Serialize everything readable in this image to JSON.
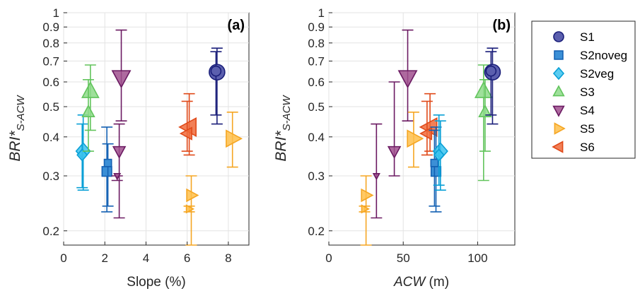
{
  "series_styles": {
    "S1": {
      "marker": "circle",
      "fill": "#5b5fae",
      "stroke": "#1b1f7a"
    },
    "S2noveg": {
      "marker": "square",
      "fill": "#3b8fd6",
      "stroke": "#1461b3"
    },
    "S2veg": {
      "marker": "diamond",
      "fill": "#3dc3ef",
      "stroke": "#0aa0d6"
    },
    "S3": {
      "marker": "triangle-up",
      "fill": "#8edb8a",
      "stroke": "#62c45c"
    },
    "S4": {
      "marker": "triangle-down",
      "fill": "#a0508e",
      "stroke": "#6b1a62"
    },
    "S5": {
      "marker": "triangle-right",
      "fill": "#ffc04a",
      "stroke": "#f5a623"
    },
    "S6": {
      "marker": "triangle-left",
      "fill": "#f06a3a",
      "stroke": "#e04a1a"
    }
  },
  "legend": {
    "position": "outside-right",
    "entries": [
      "S1",
      "S2noveg",
      "S2veg",
      "S3",
      "S4",
      "S5",
      "S6"
    ]
  },
  "chart_data": [
    {
      "type": "scatter",
      "panel_label": "(a)",
      "xlabel": "Slope (%)",
      "ylabel_main": "BRI*",
      "ylabel_sub": "S-ACW",
      "xlim": [
        0,
        9
      ],
      "ylim": [
        0.18,
        1
      ],
      "yscale": "log",
      "xticks": [
        0,
        2,
        4,
        6,
        8
      ],
      "xtick_labels": [
        "0",
        "2",
        "4",
        "6",
        "8"
      ],
      "yticks": [
        0.2,
        0.3,
        0.4,
        0.5,
        0.6,
        0.7,
        0.8,
        0.9,
        1
      ],
      "ytick_labels": [
        "0.2",
        "0.3",
        "0.4",
        "0.5",
        "0.6",
        "0.7",
        "0.8",
        "0.9",
        "1"
      ],
      "grid": true,
      "points": [
        {
          "series": "S2veg",
          "x": 0.95,
          "y": 0.36,
          "size": 10,
          "lo": 0.27,
          "hi": 0.47
        },
        {
          "series": "S2veg",
          "x": 0.9,
          "y": 0.35,
          "size": 7,
          "lo": 0.275,
          "hi": 0.44
        },
        {
          "series": "S3",
          "x": 1.3,
          "y": 0.56,
          "size": 11,
          "lo": 0.42,
          "hi": 0.68
        },
        {
          "series": "S3",
          "x": 1.2,
          "y": 0.48,
          "size": 8,
          "lo": 0.36,
          "hi": 0.61
        },
        {
          "series": "S2noveg",
          "x": 2.1,
          "y": 0.31,
          "size": 8,
          "lo": 0.23,
          "hi": 0.43
        },
        {
          "series": "S2noveg",
          "x": 2.15,
          "y": 0.33,
          "size": 6,
          "lo": 0.24,
          "hi": 0.38
        },
        {
          "series": "S4",
          "x": 2.8,
          "y": 0.62,
          "size": 12,
          "lo": 0.45,
          "hi": 0.88
        },
        {
          "series": "S4",
          "x": 2.7,
          "y": 0.36,
          "size": 8,
          "lo": 0.22,
          "hi": 0.44
        },
        {
          "series": "S4",
          "x": 2.6,
          "y": 0.3,
          "size": 4,
          "lo": 0.29,
          "hi": 0.3
        },
        {
          "series": "S5",
          "x": 6.2,
          "y": 0.26,
          "size": 8,
          "lo": 0.18,
          "hi": 0.3
        },
        {
          "series": "S5",
          "x": 6.1,
          "y": 0.235,
          "size": 5,
          "lo": 0.23,
          "hi": 0.24
        },
        {
          "series": "S5",
          "x": 8.2,
          "y": 0.395,
          "size": 11,
          "lo": 0.32,
          "hi": 0.48
        },
        {
          "series": "S6",
          "x": 6.1,
          "y": 0.43,
          "size": 12,
          "lo": 0.35,
          "hi": 0.55
        },
        {
          "series": "S6",
          "x": 6.0,
          "y": 0.41,
          "size": 8,
          "lo": 0.36,
          "hi": 0.52
        },
        {
          "series": "S1",
          "x": 7.45,
          "y": 0.645,
          "size": 11,
          "lo": 0.44,
          "hi": 0.77
        },
        {
          "series": "S1",
          "x": 7.4,
          "y": 0.65,
          "size": 7,
          "lo": 0.47,
          "hi": 0.75
        }
      ]
    },
    {
      "type": "scatter",
      "panel_label": "(b)",
      "xlabel_italic": "ACW",
      "xlabel_unit": " (m)",
      "ylabel_main": "BRI*",
      "ylabel_sub": "S-ACW",
      "xlim": [
        0,
        125
      ],
      "ylim": [
        0.18,
        1
      ],
      "yscale": "log",
      "xticks": [
        0,
        50,
        100
      ],
      "xtick_labels": [
        "0",
        "50",
        "100"
      ],
      "yticks": [
        0.2,
        0.3,
        0.4,
        0.5,
        0.6,
        0.7,
        0.8,
        0.9,
        1
      ],
      "ytick_labels": [
        "0.2",
        "0.3",
        "0.4",
        "0.5",
        "0.6",
        "0.7",
        "0.8",
        "0.9",
        "1"
      ],
      "grid": true,
      "points": [
        {
          "series": "S5",
          "x": 25,
          "y": 0.26,
          "size": 8,
          "lo": 0.18,
          "hi": 0.3
        },
        {
          "series": "S5",
          "x": 24,
          "y": 0.235,
          "size": 5,
          "lo": 0.23,
          "hi": 0.24
        },
        {
          "series": "S4",
          "x": 32,
          "y": 0.3,
          "size": 4,
          "lo": 0.22,
          "hi": 0.44
        },
        {
          "series": "S4",
          "x": 44,
          "y": 0.36,
          "size": 8,
          "lo": 0.3,
          "hi": 0.6
        },
        {
          "series": "S4",
          "x": 53,
          "y": 0.62,
          "size": 12,
          "lo": 0.45,
          "hi": 0.88
        },
        {
          "series": "S5",
          "x": 57,
          "y": 0.395,
          "size": 11,
          "lo": 0.32,
          "hi": 0.48
        },
        {
          "series": "S6",
          "x": 68,
          "y": 0.43,
          "size": 12,
          "lo": 0.36,
          "hi": 0.55
        },
        {
          "series": "S6",
          "x": 66,
          "y": 0.41,
          "size": 8,
          "lo": 0.35,
          "hi": 0.52
        },
        {
          "series": "S2noveg",
          "x": 72,
          "y": 0.31,
          "size": 8,
          "lo": 0.23,
          "hi": 0.43
        },
        {
          "series": "S2noveg",
          "x": 71,
          "y": 0.33,
          "size": 6,
          "lo": 0.24,
          "hi": 0.42
        },
        {
          "series": "S2veg",
          "x": 75,
          "y": 0.36,
          "size": 10,
          "lo": 0.27,
          "hi": 0.45
        },
        {
          "series": "S2veg",
          "x": 74,
          "y": 0.35,
          "size": 7,
          "lo": 0.28,
          "hi": 0.47
        },
        {
          "series": "S3",
          "x": 104,
          "y": 0.56,
          "size": 11,
          "lo": 0.29,
          "hi": 0.68
        },
        {
          "series": "S3",
          "x": 105,
          "y": 0.48,
          "size": 8,
          "lo": 0.36,
          "hi": 0.61
        },
        {
          "series": "S1",
          "x": 110,
          "y": 0.645,
          "size": 11,
          "lo": 0.44,
          "hi": 0.77
        },
        {
          "series": "S1",
          "x": 109,
          "y": 0.65,
          "size": 7,
          "lo": 0.47,
          "hi": 0.75
        }
      ]
    }
  ]
}
